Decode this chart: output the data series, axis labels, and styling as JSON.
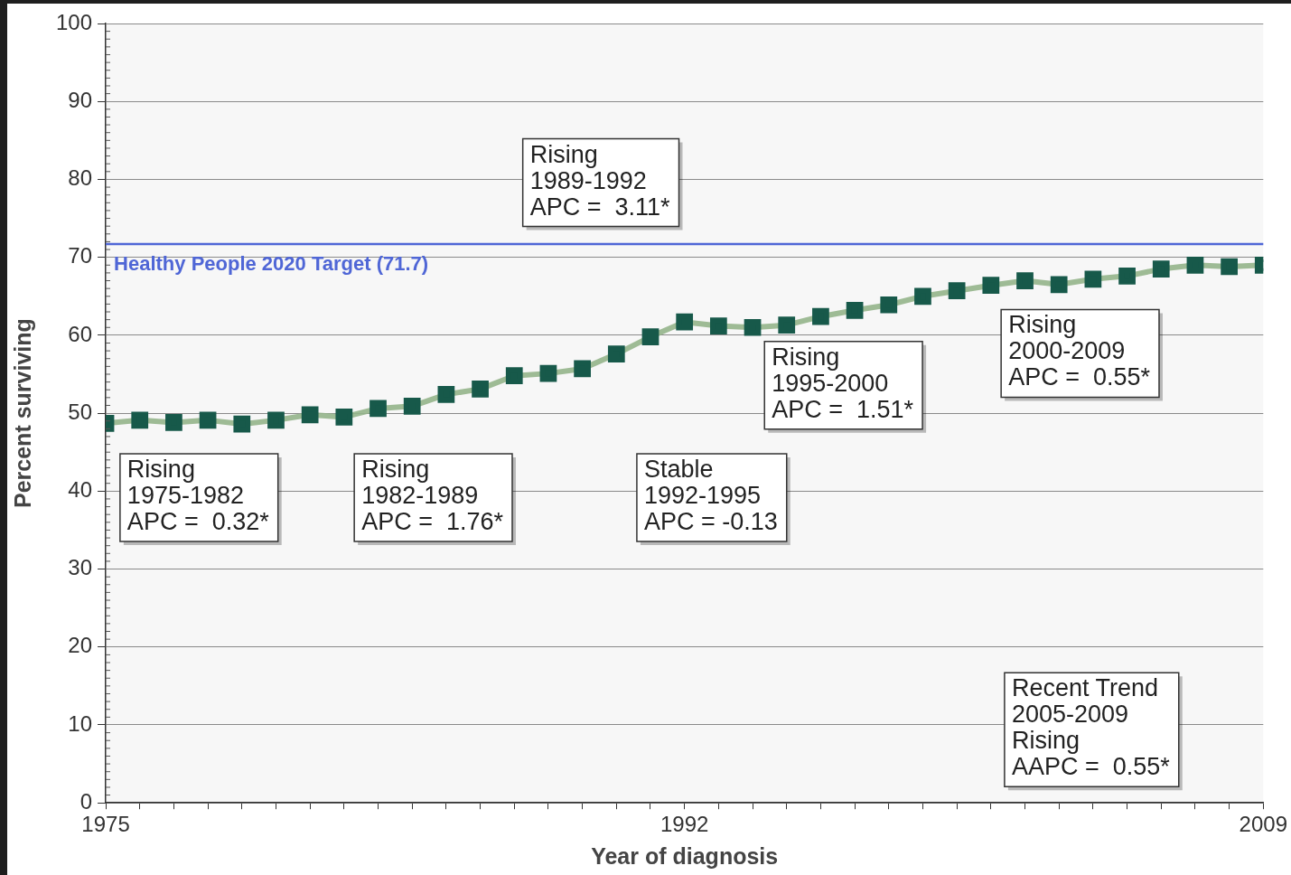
{
  "chart_data": {
    "type": "line",
    "xlabel": "Year of diagnosis",
    "ylabel": "Percent surviving",
    "x": [
      1975,
      1976,
      1977,
      1978,
      1979,
      1980,
      1981,
      1982,
      1983,
      1984,
      1985,
      1986,
      1987,
      1988,
      1989,
      1990,
      1991,
      1992,
      1993,
      1994,
      1995,
      1996,
      1997,
      1998,
      1999,
      2000,
      2001,
      2002,
      2003,
      2004,
      2005,
      2006,
      2007,
      2008,
      2009
    ],
    "series": [
      {
        "color": "#17594a",
        "values": [
          48.7,
          49.1,
          48.8,
          49.1,
          48.6,
          49.1,
          49.8,
          49.5,
          50.6,
          50.9,
          52.4,
          53.1,
          54.8,
          55.1,
          55.7,
          57.6,
          59.8,
          61.7,
          61.2,
          61.0,
          61.3,
          62.4,
          63.2,
          63.9,
          65.0,
          65.7,
          66.4,
          67.0,
          66.5,
          67.2,
          67.6,
          68.5,
          69.0,
          68.8,
          69.0
        ]
      }
    ],
    "xlim": [
      1975,
      2009
    ],
    "xticks": [
      1975,
      {
        "value": 1976,
        "label": null
      },
      {
        "value": 1977,
        "label": null
      },
      {
        "value": 1978,
        "label": null
      },
      {
        "value": 1979,
        "label": null
      },
      {
        "value": 1980,
        "label": null
      },
      {
        "value": 1981,
        "label": null
      },
      {
        "value": 1982,
        "label": null
      },
      {
        "value": 1983,
        "label": null
      },
      {
        "value": 1984,
        "label": null
      },
      {
        "value": 1985,
        "label": null
      },
      {
        "value": 1986,
        "label": null
      },
      {
        "value": 1987,
        "label": null
      },
      {
        "value": 1988,
        "label": null
      },
      {
        "value": 1989,
        "label": null
      },
      {
        "value": 1990,
        "label": null
      },
      {
        "value": 1991,
        "label": null
      },
      1992,
      {
        "value": 1993,
        "label": null
      },
      {
        "value": 1994,
        "label": null
      },
      {
        "value": 1995,
        "label": null
      },
      {
        "value": 1996,
        "label": null
      },
      {
        "value": 1997,
        "label": null
      },
      {
        "value": 1998,
        "label": null
      },
      {
        "value": 1999,
        "label": null
      },
      {
        "value": 2000,
        "label": null
      },
      {
        "value": 2001,
        "label": null
      },
      {
        "value": 2002,
        "label": null
      },
      {
        "value": 2003,
        "label": null
      },
      {
        "value": 2004,
        "label": null
      },
      {
        "value": 2005,
        "label": null
      },
      {
        "value": 2006,
        "label": null
      },
      {
        "value": 2007,
        "label": null
      },
      {
        "value": 2008,
        "label": null
      },
      2009
    ],
    "ylim": [
      0,
      100
    ],
    "yticks": [
      0,
      10,
      20,
      30,
      40,
      50,
      60,
      70,
      80,
      90,
      100
    ],
    "grid": "y",
    "marker": "square",
    "line_style": "solid",
    "ref_lines": [
      {
        "axis": "y",
        "value": 71.7,
        "label": "Healthy People 2020 Target (71.7)",
        "color": "#4f66d6"
      }
    ],
    "annotations": [
      "Rising\n1975-1982\nAPC =  0.32*",
      "Rising\n1982-1989\nAPC =  1.76*",
      "Stable\n1992-1995\nAPC = -0.13",
      "Rising\n1989-1992\nAPC =  3.11*",
      "Rising\n1995-2000\nAPC =  1.51*",
      "Rising\n2000-2009\nAPC =  0.55*",
      "Recent Trend\n2005-2009\nRising\nAAPC =  0.55*"
    ]
  }
}
